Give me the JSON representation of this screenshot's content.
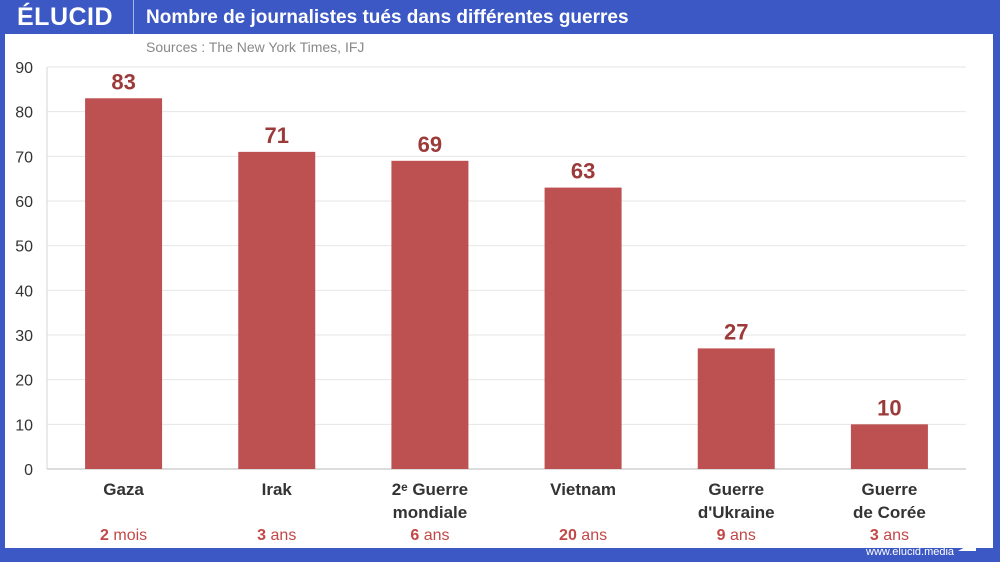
{
  "header": {
    "logo": "ÉLUCID",
    "title": "Nombre de journalistes tués dans différentes guerres"
  },
  "footer": {
    "url": "www.elucid.media"
  },
  "chart_data": {
    "type": "bar",
    "title": "Nombre de journalistes tués dans différentes guerres",
    "subtitle": "Sources : The New York Times, IFJ",
    "categories": [
      [
        "Gaza"
      ],
      [
        "Irak"
      ],
      [
        "2ᵉ Guerre",
        "mondiale"
      ],
      [
        "Vietnam"
      ],
      [
        "Guerre",
        "d'Ukraine"
      ],
      [
        "Guerre",
        "de Corée"
      ]
    ],
    "values": [
      83,
      71,
      69,
      63,
      27,
      10
    ],
    "durations": [
      {
        "num": "2",
        "unit": "mois"
      },
      {
        "num": "3",
        "unit": "ans"
      },
      {
        "num": "6",
        "unit": "ans"
      },
      {
        "num": "20",
        "unit": "ans"
      },
      {
        "num": "9",
        "unit": "ans"
      },
      {
        "num": "3",
        "unit": "ans"
      }
    ],
    "ylim": [
      0,
      90
    ],
    "yticks": [
      0,
      10,
      20,
      30,
      40,
      50,
      60,
      70,
      80,
      90
    ],
    "grid": true,
    "legend": "none",
    "colors": {
      "bar": "#bd5050",
      "label": "#9c3a3a",
      "duration": "#c24848",
      "axis_text": "#333333",
      "grid": "#e6e6e6"
    }
  }
}
